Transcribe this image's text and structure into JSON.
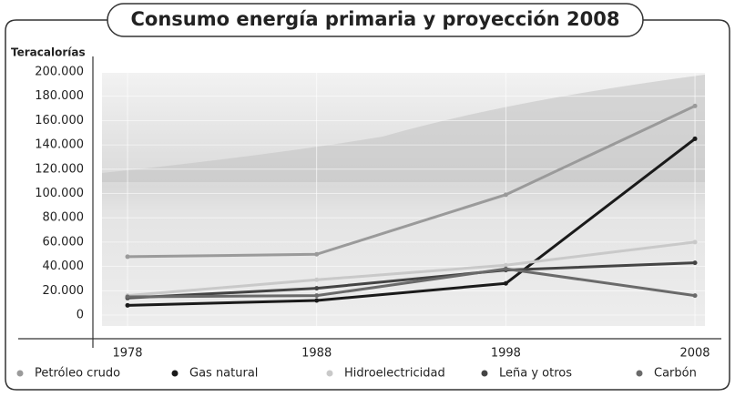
{
  "chart_data": {
    "type": "line",
    "title": "Consumo energía primaria y proyección 2008",
    "y_label": "Teracalorías",
    "x": [
      1978,
      1988,
      1998,
      2008
    ],
    "xlim": [
      1976,
      2009
    ],
    "xticks": [
      1978,
      1988,
      1998,
      2008
    ],
    "ylim": [
      0,
      200000
    ],
    "yticks": [
      0,
      {
        "value": 20000,
        "label": "20.000"
      },
      {
        "value": 40000,
        "label": "40.000"
      },
      {
        "value": 60000,
        "label": "60.000"
      },
      {
        "value": 80000,
        "label": "80.000"
      },
      {
        "value": 100000,
        "label": "100.000"
      },
      {
        "value": 120000,
        "label": "120.000"
      },
      {
        "value": 140000,
        "label": "140.000"
      },
      {
        "value": 160000,
        "label": "160.000"
      },
      {
        "value": 180000,
        "label": "180.000"
      },
      {
        "value": 200000,
        "label": "200.000"
      }
    ],
    "grid": true,
    "legend": "bottom",
    "series": [
      {
        "name": "Petróleo crudo",
        "color": "#9a9a9a",
        "values": [
          48000,
          50000,
          99000,
          172000
        ]
      },
      {
        "name": "Gas natural",
        "color": "#1a1a1a",
        "values": [
          8000,
          12000,
          26000,
          145000
        ]
      },
      {
        "name": "Hidroelectricidad",
        "color": "#c9c9c9",
        "values": [
          16000,
          29000,
          41000,
          60000
        ]
      },
      {
        "name": "Leña y otros",
        "color": "#444444",
        "values": [
          14000,
          22000,
          37000,
          43000
        ]
      },
      {
        "name": "Carbón",
        "color": "#6a6a6a",
        "values": [
          15000,
          16000,
          38000,
          16000
        ]
      }
    ]
  }
}
